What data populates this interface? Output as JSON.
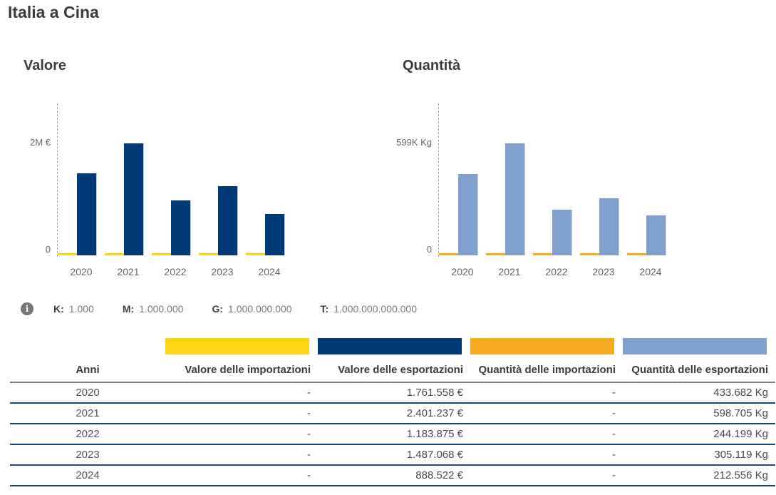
{
  "title": "Italia a Cina",
  "chart_data": [
    {
      "type": "bar",
      "title": "Valore",
      "categories": [
        "2020",
        "2021",
        "2022",
        "2023",
        "2024"
      ],
      "series": [
        {
          "name": "Valore delle importazioni",
          "color": "#fed516",
          "values": [
            0,
            0,
            0,
            0,
            0
          ]
        },
        {
          "name": "Valore delle esportazioni",
          "color": "#003a76",
          "values": [
            1761558,
            2401237,
            1183875,
            1487068,
            888522
          ]
        }
      ],
      "y_axis": {
        "max_label": "2M €",
        "zero_label": "0",
        "max_value": 2401237
      },
      "unit": "€",
      "grid": false,
      "legend_position": "none"
    },
    {
      "type": "bar",
      "title": "Quantità",
      "categories": [
        "2020",
        "2021",
        "2022",
        "2023",
        "2024"
      ],
      "series": [
        {
          "name": "Quantità delle importazioni",
          "color": "#f6ab21",
          "values": [
            0,
            0,
            0,
            0,
            0
          ]
        },
        {
          "name": "Quantità delle esportazioni",
          "color": "#80a1cd",
          "values": [
            433682,
            598705,
            244199,
            305119,
            212556
          ]
        }
      ],
      "y_axis": {
        "max_label": "599K Kg",
        "zero_label": "0",
        "max_value": 598705
      },
      "unit": "Kg",
      "grid": false,
      "legend_position": "none"
    }
  ],
  "legend": {
    "items": [
      {
        "label": "K:",
        "value": "1.000"
      },
      {
        "label": "M:",
        "value": "1.000.000"
      },
      {
        "label": "G:",
        "value": "1.000.000.000"
      },
      {
        "label": "T:",
        "value": "1.000.000.000.000"
      }
    ]
  },
  "table": {
    "columns": [
      {
        "label": "Anni",
        "color": null
      },
      {
        "label": "Valore delle importazioni",
        "color": "#fed516"
      },
      {
        "label": "Valore delle esportazioni",
        "color": "#003a76"
      },
      {
        "label": "Quantità delle importazioni",
        "color": "#f6ab21"
      },
      {
        "label": "Quantità delle esportazioni",
        "color": "#80a1cd"
      }
    ],
    "rows": [
      [
        "2020",
        "-",
        "1.761.558 €",
        "-",
        "433.682 Kg"
      ],
      [
        "2021",
        "-",
        "2.401.237 €",
        "-",
        "598.705 Kg"
      ],
      [
        "2022",
        "-",
        "1.183.875 €",
        "-",
        "244.199 Kg"
      ],
      [
        "2023",
        "-",
        "1.487.068 €",
        "-",
        "305.119 Kg"
      ],
      [
        "2024",
        "-",
        "888.522 €",
        "-",
        "212.556 Kg"
      ]
    ]
  }
}
